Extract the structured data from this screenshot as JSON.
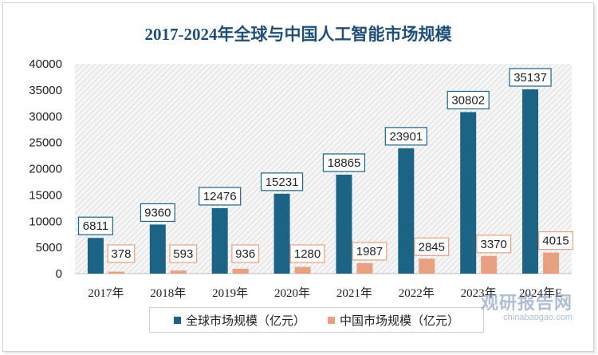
{
  "chart_data": {
    "type": "bar",
    "title": "2017-2024年全球与中国人工智能市场规模",
    "categories": [
      "2017年",
      "2018年",
      "2019年",
      "2020年",
      "2021年",
      "2022年",
      "2023年",
      "2024年E"
    ],
    "series": [
      {
        "name": "全球市场规模（亿元）",
        "color": "#1b6486",
        "values": [
          6811,
          9360,
          12476,
          15231,
          18865,
          23901,
          30802,
          35137
        ]
      },
      {
        "name": "中国市场规模（亿元）",
        "color": "#e8a080",
        "values": [
          378,
          593,
          936,
          1280,
          1987,
          2845,
          3370,
          4015
        ]
      }
    ],
    "yticks": [
      0,
      5000,
      10000,
      15000,
      20000,
      25000,
      30000,
      35000,
      40000
    ],
    "ylim": [
      0,
      40000
    ],
    "grid": false,
    "legend_position": "bottom"
  },
  "watermark": {
    "logo": "观研报告网",
    "url": "chinabaogao.com"
  }
}
